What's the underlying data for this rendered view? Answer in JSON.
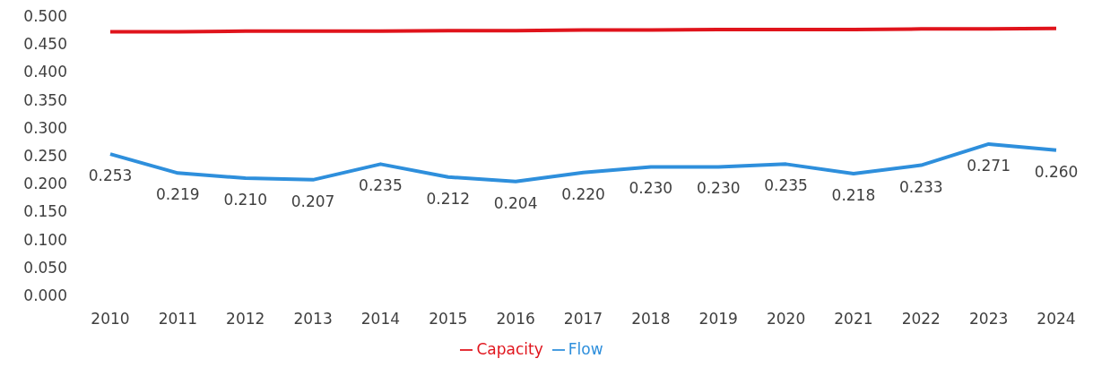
{
  "chart_data": {
    "type": "line",
    "categories": [
      "2010",
      "2011",
      "2012",
      "2013",
      "2014",
      "2015",
      "2016",
      "2017",
      "2018",
      "2019",
      "2020",
      "2021",
      "2022",
      "2023",
      "2024"
    ],
    "series": [
      {
        "name": "Flow",
        "color": "#2e8fdc",
        "values": [
          0.253,
          0.219,
          0.21,
          0.207,
          0.235,
          0.212,
          0.204,
          0.22,
          0.23,
          0.23,
          0.235,
          0.218,
          0.233,
          0.271,
          0.26
        ],
        "value_labels": [
          "0.253",
          "0.219",
          "0.210",
          "0.207",
          "0.235",
          "0.212",
          "0.204",
          "0.220",
          "0.230",
          "0.230",
          "0.235",
          "0.218",
          "0.233",
          "0.271",
          "0.260"
        ]
      },
      {
        "name": "Capacity",
        "color": "#e0141c",
        "values": [
          0.472,
          0.472,
          0.473,
          0.473,
          0.473,
          0.474,
          0.474,
          0.475,
          0.475,
          0.476,
          0.476,
          0.476,
          0.477,
          0.477,
          0.478
        ]
      }
    ],
    "ylim": [
      0,
      0.5
    ],
    "yticks": [
      {
        "value": 0,
        "label": "0.000"
      },
      {
        "value": 0.05,
        "label": "0.050"
      },
      {
        "value": 0.1,
        "label": "0.100"
      },
      {
        "value": 0.15,
        "label": "0.150"
      },
      {
        "value": 0.2,
        "label": "0.200"
      },
      {
        "value": 0.25,
        "label": "0.250"
      },
      {
        "value": 0.3,
        "label": "0.300"
      },
      {
        "value": 0.35,
        "label": "0.350"
      },
      {
        "value": 0.4,
        "label": "0.400"
      },
      {
        "value": 0.45,
        "label": "0.450"
      },
      {
        "value": 0.5,
        "label": "0.500"
      }
    ],
    "legend": "bottom",
    "marker": "none",
    "line_style": "solid",
    "grid": false
  }
}
